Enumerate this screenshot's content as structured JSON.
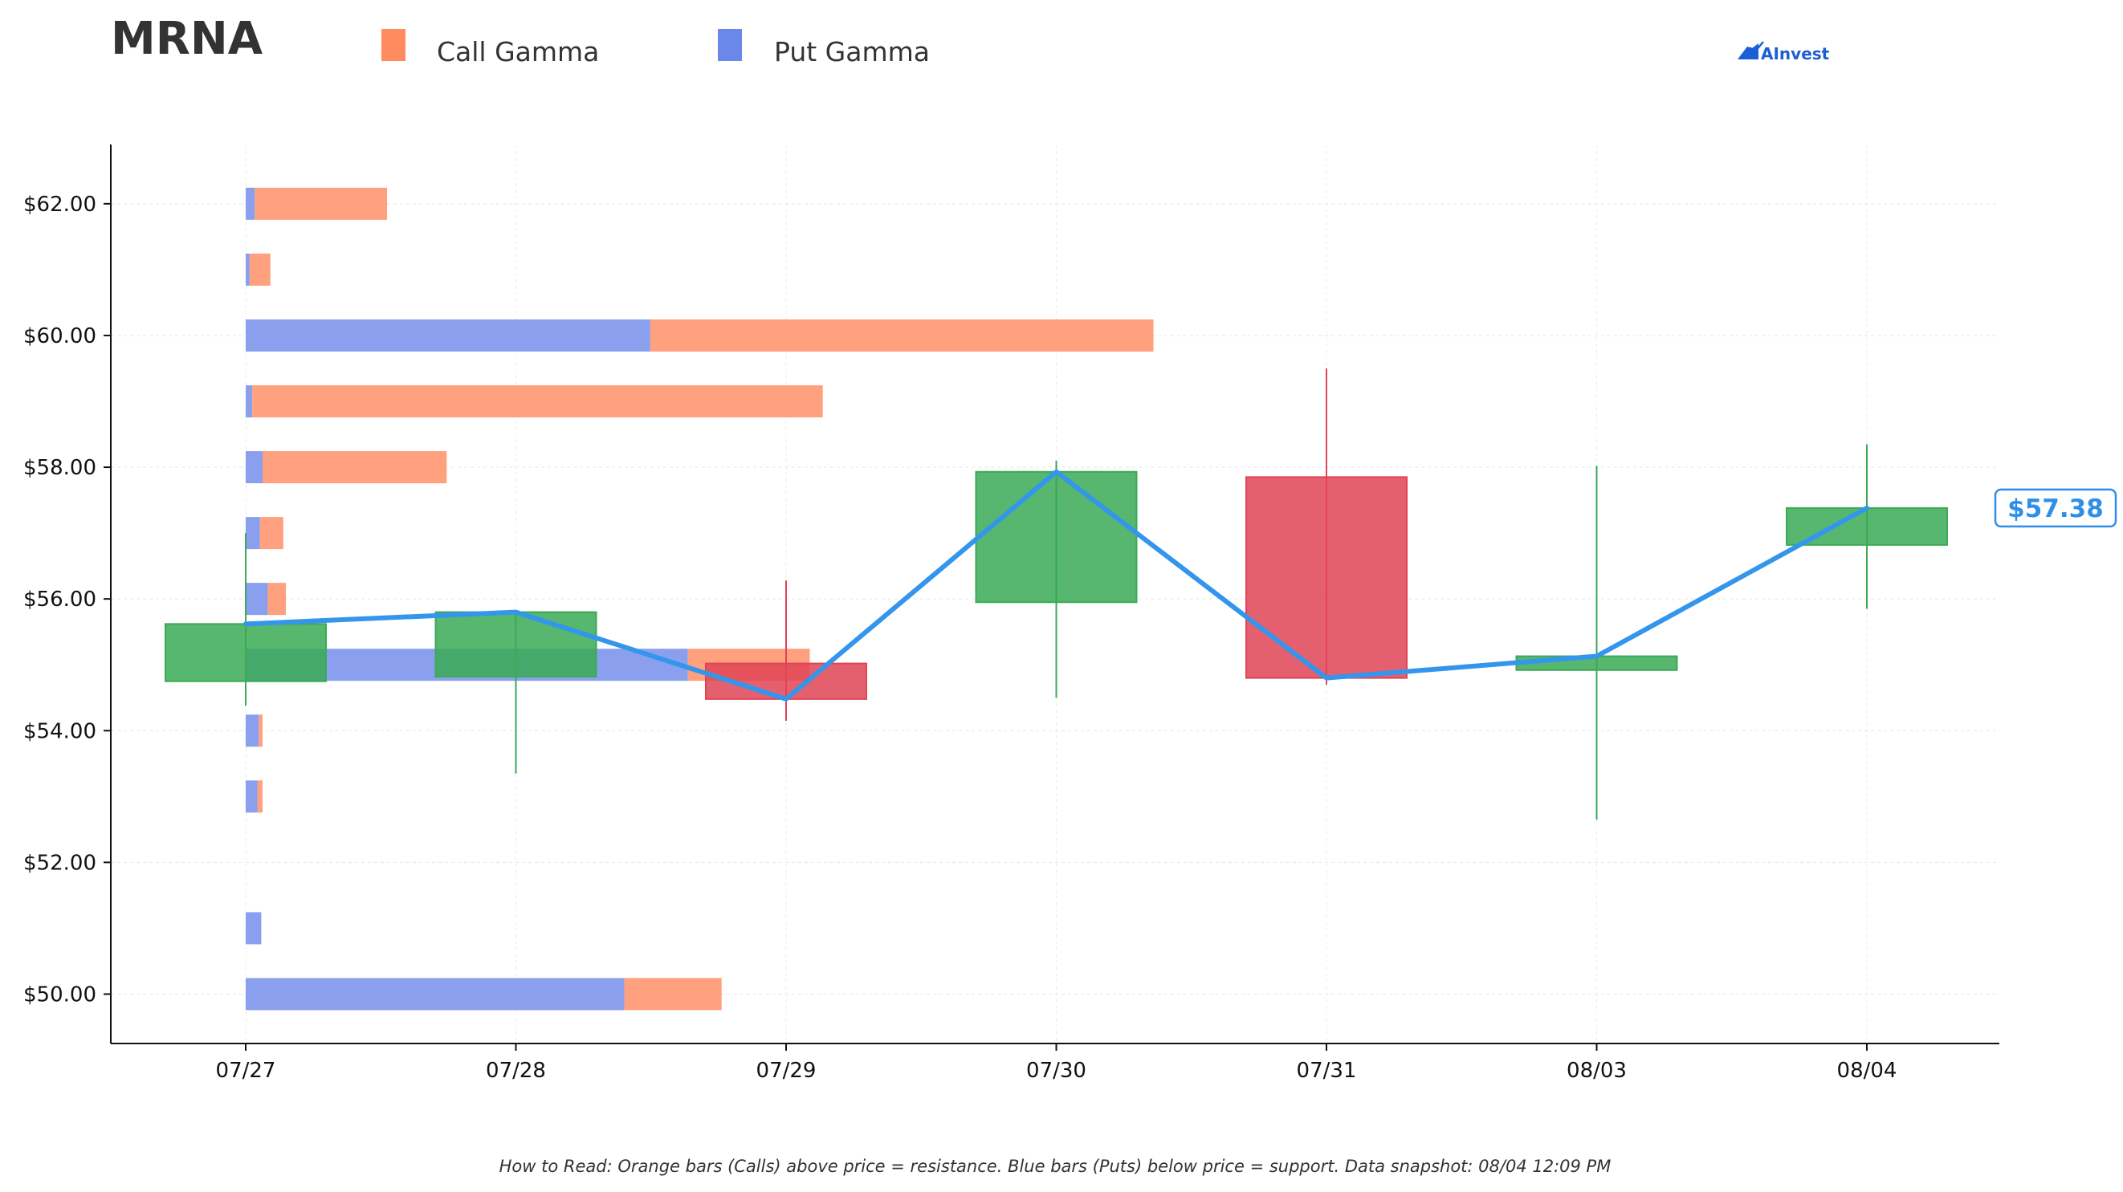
{
  "header": {
    "ticker": "MRNA",
    "legend": [
      {
        "label": "Call Gamma",
        "color": "#ff8c5e"
      },
      {
        "label": "Put Gamma",
        "color": "#6b88e8"
      }
    ],
    "brand": "AInvest"
  },
  "footnote": "How to Read: Orange bars (Calls) above price = resistance. Blue bars (Puts) below price = support. Data snapshot: 08/04 12:09 PM",
  "current_price_label": "$57.38",
  "colors": {
    "call": "#ffa07e",
    "put": "#8aa0ee",
    "up": "#3aaa55",
    "down": "#e04455",
    "price_line": "#3396ec"
  },
  "chart_data": {
    "type": "candlestick+horizontal-bar",
    "x_categories": [
      "07/27",
      "07/28",
      "07/29",
      "07/30",
      "07/31",
      "08/03",
      "08/04"
    ],
    "y_ticks": [
      {
        "value": 50,
        "label": "$50.00"
      },
      {
        "value": 52,
        "label": "$52.00"
      },
      {
        "value": 54,
        "label": "$54.00"
      },
      {
        "value": 56,
        "label": "$56.00"
      },
      {
        "value": 58,
        "label": "$58.00"
      },
      {
        "value": 60,
        "label": "$60.00"
      },
      {
        "value": 62,
        "label": "$62.00"
      }
    ],
    "ylim": [
      49.25,
      62.9
    ],
    "grid": true,
    "candles": [
      {
        "date": "07/27",
        "open": 54.75,
        "close": 55.62,
        "high": 57.0,
        "low": 54.38
      },
      {
        "date": "07/28",
        "open": 54.82,
        "close": 55.8,
        "high": 55.82,
        "low": 53.35
      },
      {
        "date": "07/29",
        "open": 55.02,
        "close": 54.48,
        "high": 56.28,
        "low": 54.15
      },
      {
        "date": "07/30",
        "open": 55.95,
        "close": 57.93,
        "high": 58.1,
        "low": 54.5
      },
      {
        "date": "07/31",
        "open": 57.85,
        "close": 54.8,
        "high": 59.5,
        "low": 54.7
      },
      {
        "date": "08/03",
        "open": 54.92,
        "close": 55.13,
        "high": 58.02,
        "low": 52.65
      },
      {
        "date": "08/04",
        "open": 56.82,
        "close": 57.38,
        "high": 58.35,
        "low": 55.85
      }
    ],
    "price_line": [
      55.62,
      55.8,
      54.48,
      57.93,
      54.8,
      55.13,
      57.38
    ],
    "gamma_strikes": [
      {
        "strike": 62,
        "put": 0.07,
        "call": 1.02
      },
      {
        "strike": 61,
        "put": 0.03,
        "call": 0.16
      },
      {
        "strike": 60,
        "put": 3.12,
        "call": 3.88
      },
      {
        "strike": 59,
        "put": 0.05,
        "call": 4.4
      },
      {
        "strike": 58,
        "put": 0.13,
        "call": 1.42
      },
      {
        "strike": 57,
        "put": 0.11,
        "call": 0.18
      },
      {
        "strike": 56,
        "put": 0.17,
        "call": 0.14
      },
      {
        "strike": 55,
        "put": 3.41,
        "call": 0.94
      },
      {
        "strike": 54,
        "put": 0.1,
        "call": 0.03
      },
      {
        "strike": 53,
        "put": 0.09,
        "call": 0.04
      },
      {
        "strike": 51,
        "put": 0.12,
        "call": 0.0
      },
      {
        "strike": 50,
        "put": 2.92,
        "call": 0.75
      }
    ]
  }
}
